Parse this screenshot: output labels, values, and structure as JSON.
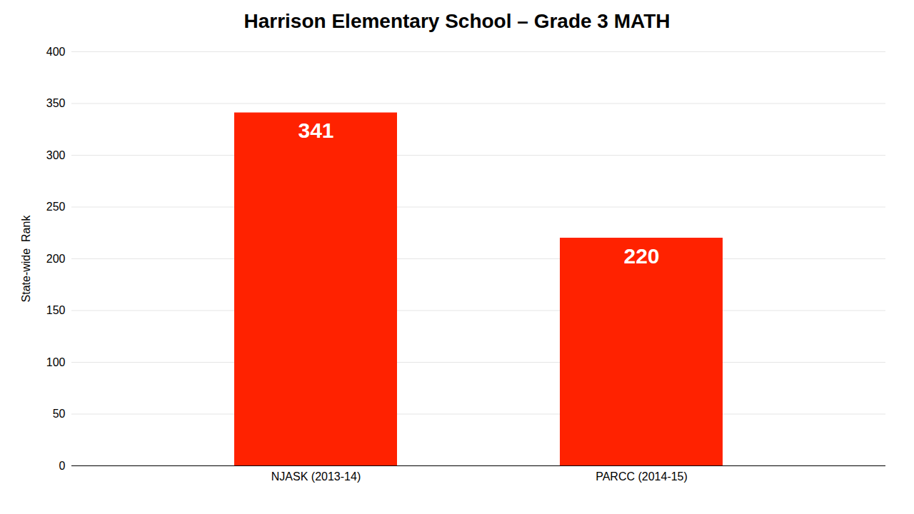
{
  "chart_data": {
    "type": "bar",
    "title": "Harrison Elementary School – Grade 3 MATH",
    "categories": [
      "NJASK (2013-14)",
      "PARCC (2014-15)"
    ],
    "values": [
      341,
      220
    ],
    "color": "#FF2200",
    "ylabel": "State-wide  Rank",
    "ylim": [
      0,
      400
    ],
    "yticks": [
      0,
      50,
      100,
      150,
      200,
      250,
      300,
      350,
      400
    ],
    "grid": true,
    "data_labels": true
  }
}
